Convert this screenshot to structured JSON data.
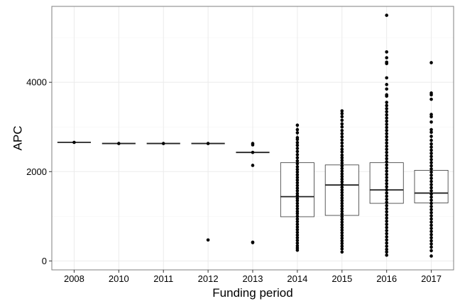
{
  "chart_data": {
    "type": "box",
    "title": "",
    "xlabel": "Funding period",
    "ylabel": "APC",
    "grid": true,
    "legend": "none",
    "ylim": [
      -200,
      5700
    ],
    "yticks": [
      0,
      2000,
      4000
    ],
    "categories": [
      "2008",
      "2010",
      "2011",
      "2012",
      "2013",
      "2014",
      "2015",
      "2016",
      "2017"
    ],
    "boxes": [
      {
        "category": "2008",
        "q1": 2655,
        "median": 2655,
        "q3": 2655,
        "whisker_low": 2655,
        "whisker_high": 2655
      },
      {
        "category": "2010",
        "q1": 2630,
        "median": 2630,
        "q3": 2630,
        "whisker_low": 2630,
        "whisker_high": 2630
      },
      {
        "category": "2011",
        "q1": 2630,
        "median": 2630,
        "q3": 2630,
        "whisker_low": 2630,
        "whisker_high": 2630
      },
      {
        "category": "2012",
        "q1": 2630,
        "median": 2630,
        "q3": 2630,
        "whisker_low": 2630,
        "whisker_high": 2630
      },
      {
        "category": "2013",
        "q1": 2430,
        "median": 2430,
        "q3": 2430,
        "whisker_low": 2430,
        "whisker_high": 2430
      },
      {
        "category": "2014",
        "q1": 990,
        "median": 1440,
        "q3": 2200,
        "whisker_low": 240,
        "whisker_high": 3040
      },
      {
        "category": "2015",
        "q1": 1020,
        "median": 1700,
        "q3": 2150,
        "whisker_low": 200,
        "whisker_high": 3360
      },
      {
        "category": "2016",
        "q1": 1290,
        "median": 1590,
        "q3": 2200,
        "whisker_low": 130,
        "whisker_high": 3550
      },
      {
        "category": "2017",
        "q1": 1300,
        "median": 1520,
        "q3": 2030,
        "whisker_low": 230,
        "whisker_high": 2780
      }
    ],
    "points": [
      {
        "category": "2008",
        "values": [
          2655
        ]
      },
      {
        "category": "2010",
        "values": [
          2630
        ]
      },
      {
        "category": "2011",
        "values": [
          2630
        ]
      },
      {
        "category": "2012",
        "values": [
          2630,
          470
        ]
      },
      {
        "category": "2013",
        "values": [
          2630,
          2600,
          2430,
          2140,
          420,
          410
        ]
      },
      {
        "category": "2014",
        "values": [
          3040,
          2940,
          2870,
          2760,
          2720,
          2650,
          2590,
          2520,
          2450,
          2380,
          2310,
          2240,
          2180,
          2110,
          2050,
          1990,
          1930,
          1870,
          1810,
          1750,
          1690,
          1630,
          1570,
          1510,
          1460,
          1400,
          1350,
          1290,
          1230,
          1170,
          1110,
          1060,
          1000,
          940,
          880,
          820,
          760,
          700,
          640,
          580,
          520,
          460,
          400,
          340,
          290,
          240
        ]
      },
      {
        "category": "2015",
        "values": [
          3360,
          3300,
          3230,
          3150,
          3070,
          3000,
          2920,
          2850,
          2780,
          2710,
          2640,
          2570,
          2500,
          2440,
          2370,
          2310,
          2250,
          2190,
          2130,
          2070,
          2010,
          1950,
          1890,
          1830,
          1770,
          1710,
          1650,
          1590,
          1530,
          1470,
          1410,
          1350,
          1290,
          1230,
          1170,
          1110,
          1050,
          990,
          930,
          870,
          810,
          750,
          690,
          630,
          570,
          510,
          450,
          390,
          330,
          270,
          200
        ]
      },
      {
        "category": "2016",
        "values": [
          5500,
          4680,
          4550,
          4450,
          4420,
          4100,
          3950,
          3850,
          3720,
          3690,
          3550,
          3480,
          3410,
          3340,
          3270,
          3200,
          3130,
          3060,
          2990,
          2920,
          2850,
          2780,
          2710,
          2640,
          2570,
          2500,
          2430,
          2360,
          2290,
          2220,
          2150,
          2080,
          2010,
          1940,
          1870,
          1800,
          1730,
          1660,
          1590,
          1520,
          1450,
          1380,
          1310,
          1240,
          1170,
          1100,
          1030,
          960,
          890,
          820,
          750,
          680,
          610,
          540,
          470,
          400,
          330,
          260,
          200,
          130
        ]
      },
      {
        "category": "2017",
        "values": [
          4440,
          3760,
          3720,
          3620,
          3280,
          3230,
          3110,
          2940,
          2880,
          2790,
          2700,
          2620,
          2550,
          2480,
          2410,
          2340,
          2270,
          2200,
          2130,
          2060,
          1990,
          1920,
          1850,
          1780,
          1710,
          1640,
          1570,
          1500,
          1430,
          1360,
          1290,
          1220,
          1150,
          1080,
          1010,
          940,
          870,
          800,
          730,
          660,
          590,
          520,
          450,
          380,
          310,
          230,
          110
        ]
      }
    ]
  }
}
